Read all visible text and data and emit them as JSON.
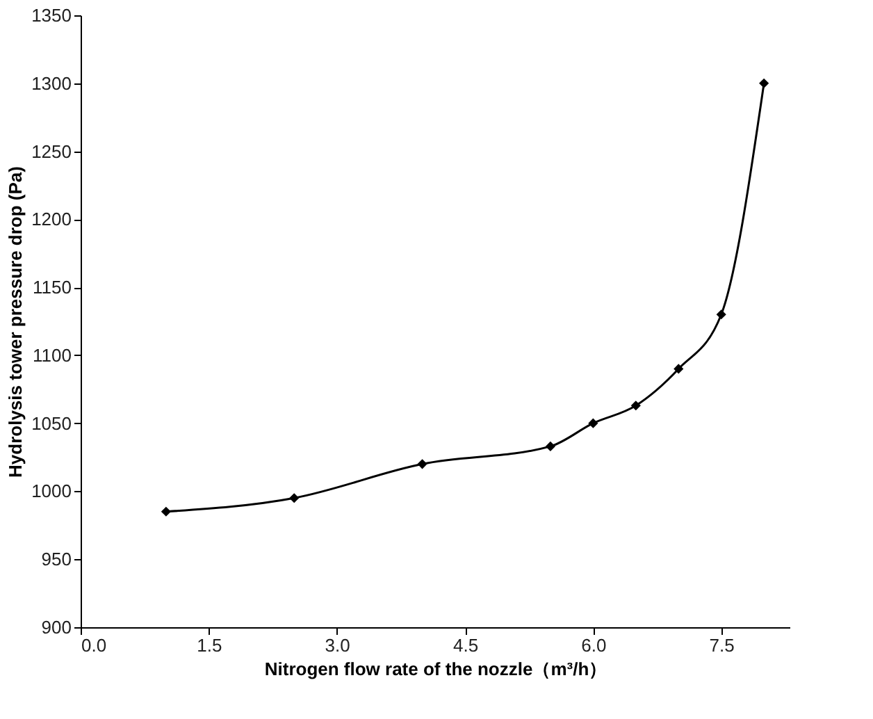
{
  "chart_data": {
    "type": "line",
    "xlabel": "Nitrogen flow rate of the nozzle（m³/h）",
    "ylabel": "Hydrolysis tower pressure drop (Pa)",
    "x": [
      1,
      2.5,
      4,
      5.5,
      6,
      6.5,
      7,
      7.5,
      8
    ],
    "series": [
      {
        "color": "#000000",
        "values": [
          985,
          995,
          1020,
          1033,
          1050,
          1063,
          1090,
          1130,
          1300
        ]
      }
    ],
    "xlim": [
      0,
      8.3
    ],
    "xticks": [
      {
        "value": 0,
        "label": "0.0"
      },
      1.5,
      {
        "value": 3,
        "label": "3.0"
      },
      4.5,
      {
        "value": 6,
        "label": "6.0"
      },
      7.5
    ],
    "ylim": [
      900,
      1350
    ],
    "yticks": [
      900,
      950,
      1000,
      1050,
      1100,
      1150,
      1200,
      1250,
      1300,
      1350
    ],
    "grid": false,
    "marker": "diamond",
    "line_style": "solid"
  }
}
